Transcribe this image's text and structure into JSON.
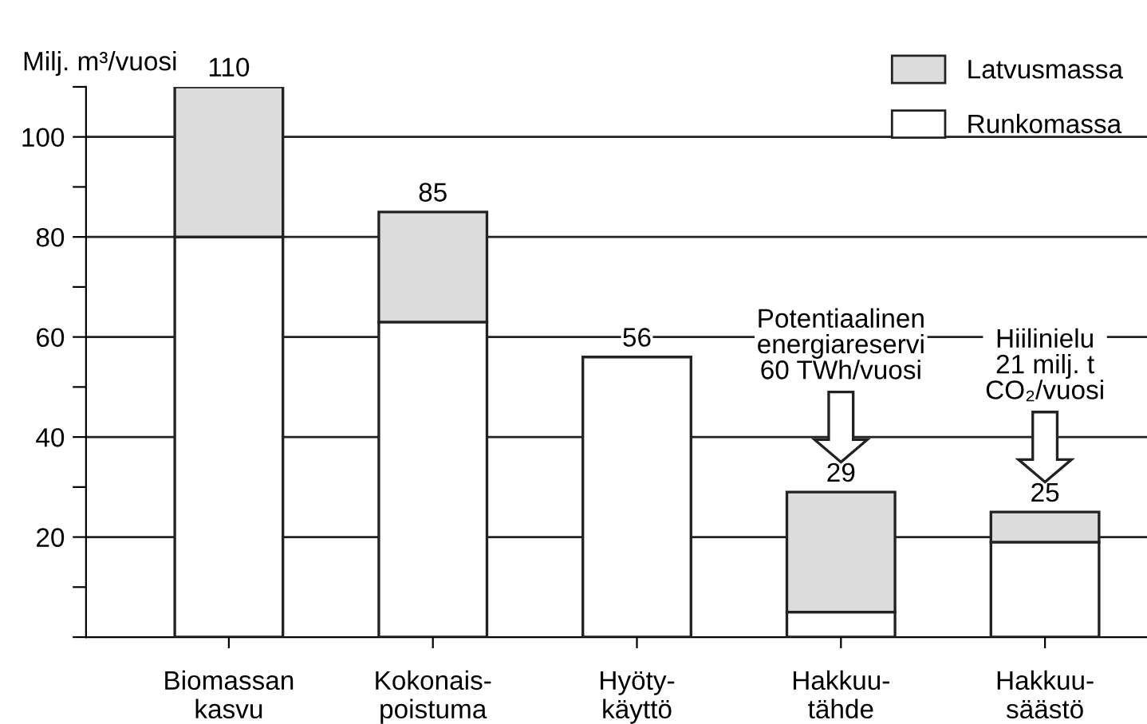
{
  "chart_data": {
    "type": "bar",
    "stacked": true,
    "ylabel": "Milj. m³/vuosi",
    "categories": [
      "Biomassan\nkasvu",
      "Kokonais-\npoistuma",
      "Hyöty-\nkäyttö",
      "Hakkuu-\ntähde",
      "Hakkuu-\nsäästö"
    ],
    "series": [
      {
        "name": "Runkomassa",
        "color": "#ffffff",
        "values": [
          80,
          63,
          56,
          5,
          19
        ]
      },
      {
        "name": "Latvusmassa",
        "color": "#dcdcdc",
        "values": [
          30,
          22,
          null,
          24,
          6
        ]
      }
    ],
    "totals": [
      "110",
      "85",
      "56",
      "29",
      "25"
    ],
    "ylim": [
      0,
      110
    ],
    "yticks": [
      {
        "value": 0,
        "label": null
      },
      {
        "value": 10,
        "label": null
      },
      20,
      {
        "value": 30,
        "label": null
      },
      40,
      {
        "value": 50,
        "label": null
      },
      60,
      {
        "value": 70,
        "label": null
      },
      80,
      {
        "value": 90,
        "label": null
      },
      100,
      {
        "value": 110,
        "label": null
      }
    ],
    "grid": "y",
    "legend": "top right",
    "annotations": [
      "Potentiaalinen\nenergiareservi\n60 TWh/vuosi",
      "Hiilinielu\n21 milj. t\nCO₂/vuosi"
    ]
  }
}
